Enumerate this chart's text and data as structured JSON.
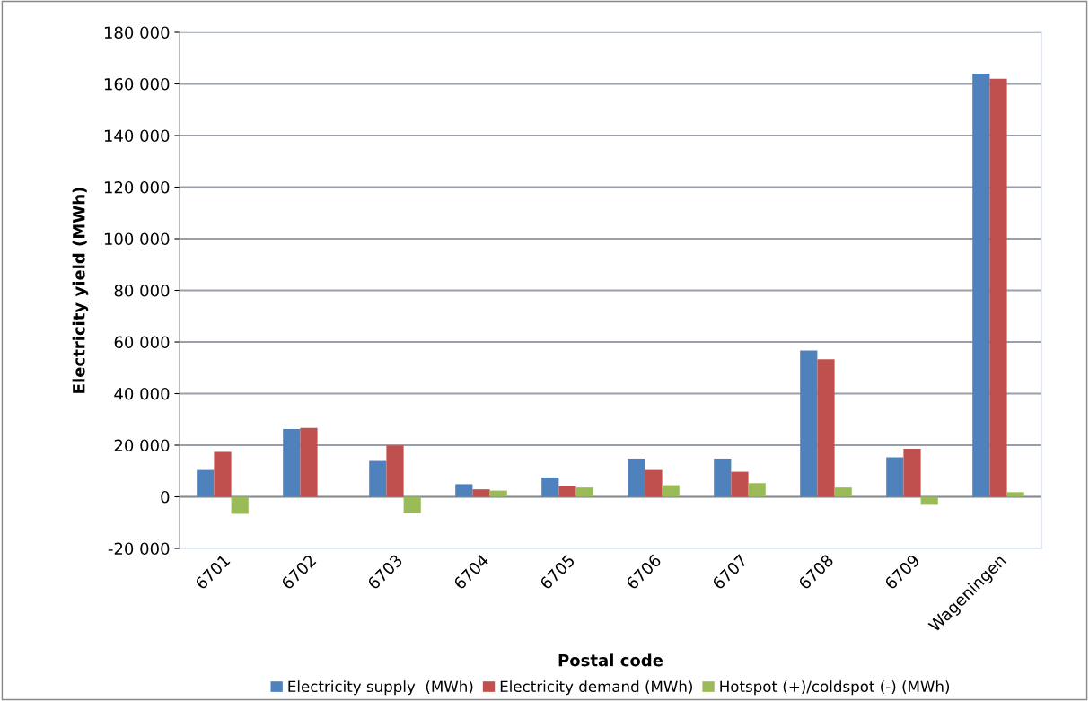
{
  "chart_data": {
    "type": "bar",
    "xlabel": "Postal code",
    "ylabel": "Electricity yield (MWh)",
    "categories": [
      "6701",
      "6702",
      "6703",
      "6704",
      "6705",
      "6706",
      "6707",
      "6708",
      "6709",
      "Wageningen"
    ],
    "series": [
      {
        "name": "Electricity supply  (MWh)",
        "color": "#4f81bd",
        "values": [
          10400,
          26300,
          13900,
          4900,
          7500,
          14800,
          14800,
          56700,
          15300,
          164000
        ]
      },
      {
        "name": "Electricity demand (MWh)",
        "color": "#c0504d",
        "values": [
          17400,
          26700,
          19900,
          2900,
          4000,
          10400,
          9700,
          53300,
          18600,
          162000
        ]
      },
      {
        "name": "Hotspot (+)/coldspot (-) (MWh)",
        "color": "#9bbb59",
        "values": [
          -6600,
          0,
          -6300,
          2400,
          3600,
          4500,
          5300,
          3600,
          -3100,
          1800
        ]
      }
    ],
    "ylim": [
      -20000,
      180000
    ],
    "yticks": [
      {
        "value": -20000,
        "label": "-20 000"
      },
      {
        "value": 0,
        "label": "0"
      },
      {
        "value": 20000,
        "label": "20 000"
      },
      {
        "value": 40000,
        "label": "40 000"
      },
      {
        "value": 60000,
        "label": "60 000"
      },
      {
        "value": 80000,
        "label": "80 000"
      },
      {
        "value": 100000,
        "label": "100 000"
      },
      {
        "value": 120000,
        "label": "120 000"
      },
      {
        "value": 140000,
        "label": "140 000"
      },
      {
        "value": 160000,
        "label": "160 000"
      },
      {
        "value": 180000,
        "label": "180 000"
      }
    ],
    "grid": "y",
    "legend": "bottom"
  }
}
